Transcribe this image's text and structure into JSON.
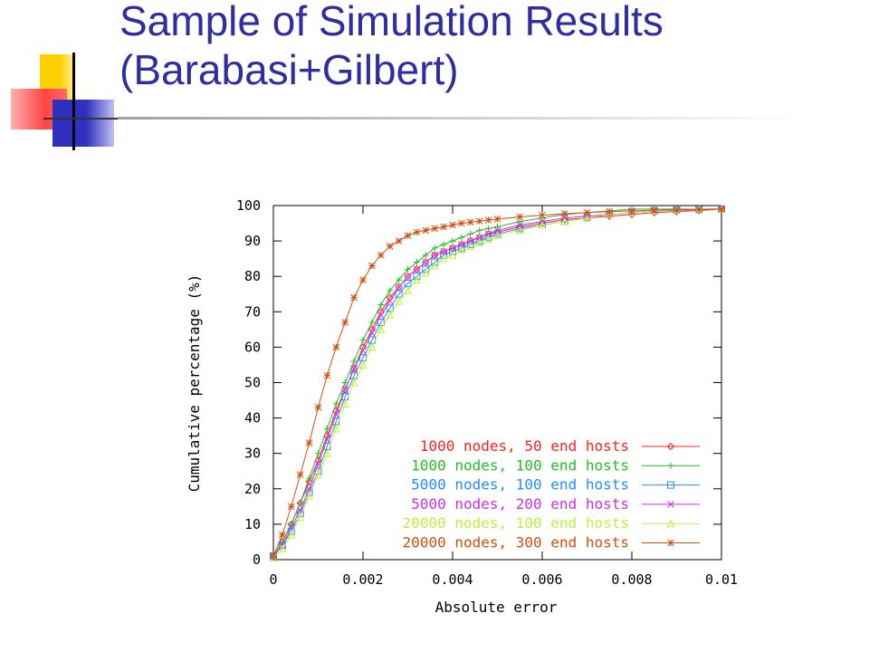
{
  "slide": {
    "title_line1": "Sample of Simulation Results",
    "title_line2": "(Barabasi+Gilbert)",
    "colors": {
      "title": "#2e2e9f",
      "deco_yellow": "#ffd000",
      "deco_red": "#ff4444",
      "deco_blue": "#3030c0"
    }
  },
  "chart_data": {
    "type": "line",
    "title": "",
    "xlabel": "Absolute error",
    "ylabel": "Cumulative percentage (%)",
    "xlim": [
      0,
      0.01
    ],
    "ylim": [
      0,
      100
    ],
    "xticks": [
      0,
      0.002,
      0.004,
      0.006,
      0.008,
      0.01
    ],
    "xtick_labels": [
      "0",
      "0.002",
      "0.004",
      "0.006",
      "0.008",
      "0.01"
    ],
    "yticks": [
      0,
      10,
      20,
      30,
      40,
      50,
      60,
      70,
      80,
      90,
      100
    ],
    "ytick_labels": [
      "0",
      "10",
      "20",
      "30",
      "40",
      "50",
      "60",
      "70",
      "80",
      "90",
      "100"
    ],
    "grid": false,
    "legend_position": "bottom-right",
    "x": [
      0,
      0.0002,
      0.0004,
      0.0006,
      0.0008,
      0.001,
      0.0012,
      0.0014,
      0.0016,
      0.0018,
      0.002,
      0.0022,
      0.0024,
      0.0026,
      0.0028,
      0.003,
      0.0032,
      0.0034,
      0.0036,
      0.0038,
      0.004,
      0.0042,
      0.0044,
      0.0046,
      0.0048,
      0.005,
      0.0055,
      0.006,
      0.0065,
      0.007,
      0.0075,
      0.008,
      0.0085,
      0.009,
      0.0095,
      0.01
    ],
    "series": [
      {
        "name": "1000 nodes, 50 end hosts",
        "color": "#ff2020",
        "marker": "diamond",
        "values": [
          1,
          5,
          10,
          16,
          22,
          28,
          35,
          42,
          48,
          54,
          60,
          65,
          70,
          74,
          77,
          80,
          82,
          84,
          86,
          87,
          88,
          89,
          90,
          91,
          92,
          92.5,
          94,
          95,
          96,
          96.5,
          97,
          97.5,
          98,
          98.3,
          98.6,
          99
        ]
      },
      {
        "name": "1000 nodes, 100 end hosts",
        "color": "#20c020",
        "marker": "plus",
        "values": [
          1,
          5,
          10,
          16,
          23,
          30,
          37,
          44,
          50,
          56,
          62,
          67,
          72,
          76,
          79,
          82,
          84,
          86,
          88,
          89,
          90,
          91,
          92,
          93,
          93.5,
          94,
          95.5,
          96.5,
          97.5,
          98,
          98.5,
          99,
          99,
          99,
          99,
          99
        ]
      },
      {
        "name": "5000 nodes, 100 end hosts",
        "color": "#2090ff",
        "marker": "square",
        "values": [
          1,
          4,
          8,
          13,
          19,
          25,
          32,
          39,
          46,
          52,
          57,
          62,
          67,
          71,
          75,
          78,
          80,
          82,
          84,
          86,
          87,
          88,
          89,
          90,
          91,
          92,
          93.5,
          94.5,
          95.5,
          96.5,
          97.5,
          98,
          98.5,
          98.7,
          98.9,
          99
        ]
      },
      {
        "name": "5000 nodes, 200 end hosts",
        "color": "#d030e0",
        "marker": "x",
        "values": [
          1,
          4,
          9,
          14,
          20,
          27,
          34,
          41,
          48,
          54,
          59,
          64,
          69,
          73,
          77,
          80,
          82,
          84,
          86,
          87,
          88,
          89,
          90,
          91,
          92,
          93,
          94.5,
          95.5,
          96.5,
          97,
          97.5,
          98,
          98.5,
          98.7,
          98.9,
          99
        ]
      },
      {
        "name": "20000 nodes, 100 end hosts",
        "color": "#c0f040",
        "marker": "triangle",
        "values": [
          0.5,
          3,
          7,
          12,
          18,
          24,
          30,
          37,
          44,
          50,
          55,
          60,
          65,
          69,
          73,
          76,
          79,
          81,
          83,
          85,
          86,
          87.5,
          88.5,
          89.5,
          90.5,
          91.5,
          93,
          94.5,
          95.5,
          96.5,
          97.5,
          98,
          98.5,
          98.8,
          99,
          99
        ]
      },
      {
        "name": "20000 nodes, 300 end hosts",
        "color": "#d05010",
        "marker": "star",
        "values": [
          1,
          7,
          15,
          24,
          33,
          43,
          52,
          60,
          67,
          74,
          79,
          83,
          86,
          88.5,
          90,
          91.5,
          92.5,
          93,
          93.5,
          94,
          94.5,
          95,
          95.3,
          95.6,
          95.9,
          96.2,
          96.8,
          97.3,
          97.7,
          98,
          98.3,
          98.5,
          98.7,
          98.8,
          98.9,
          99
        ]
      }
    ]
  }
}
